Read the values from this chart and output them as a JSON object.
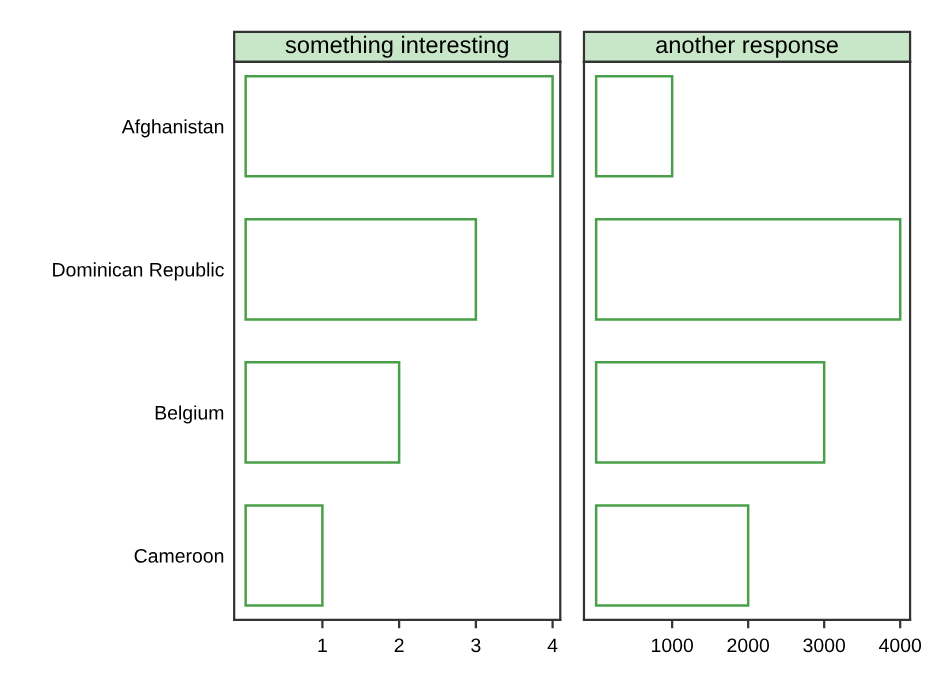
{
  "chart_data": [
    {
      "type": "bar",
      "orientation": "horizontal",
      "title": "something interesting",
      "categories": [
        "Afghanistan",
        "Dominican Republic",
        "Belgium",
        "Cameroon"
      ],
      "values": [
        4,
        3,
        2,
        1
      ],
      "color": "#4aa04a",
      "xlim": [
        -0.15,
        4.1
      ],
      "xticks": [
        1,
        2,
        3,
        4
      ]
    },
    {
      "type": "bar",
      "orientation": "horizontal",
      "title": "another response",
      "categories": [
        null,
        null,
        null,
        null
      ],
      "values": [
        1000,
        4000,
        3000,
        2000
      ],
      "color": "#4aa04a",
      "xlim": [
        -160,
        4130
      ],
      "xticks": [
        1000,
        2000,
        3000,
        4000
      ]
    }
  ]
}
